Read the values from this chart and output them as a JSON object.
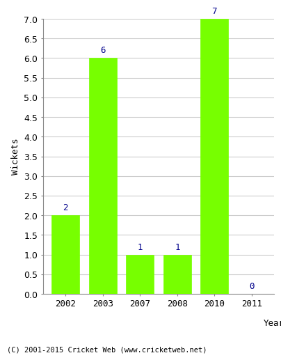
{
  "categories": [
    "2002",
    "2003",
    "2007",
    "2008",
    "2010",
    "2011"
  ],
  "values": [
    2,
    6,
    1,
    1,
    7,
    0
  ],
  "bar_color": "#77ff00",
  "bar_edge_color": "#77ff00",
  "label_color": "#00008b",
  "ylabel": "Wickets",
  "xlabel": "Year",
  "ylim": [
    0,
    7.0
  ],
  "yticks": [
    0.0,
    0.5,
    1.0,
    1.5,
    2.0,
    2.5,
    3.0,
    3.5,
    4.0,
    4.5,
    5.0,
    5.5,
    6.0,
    6.5,
    7.0
  ],
  "footer": "(C) 2001-2015 Cricket Web (www.cricketweb.net)",
  "background_color": "#ffffff",
  "grid_color": "#cccccc",
  "label_fontsize": 9,
  "axis_fontsize": 9,
  "bar_width": 0.75
}
